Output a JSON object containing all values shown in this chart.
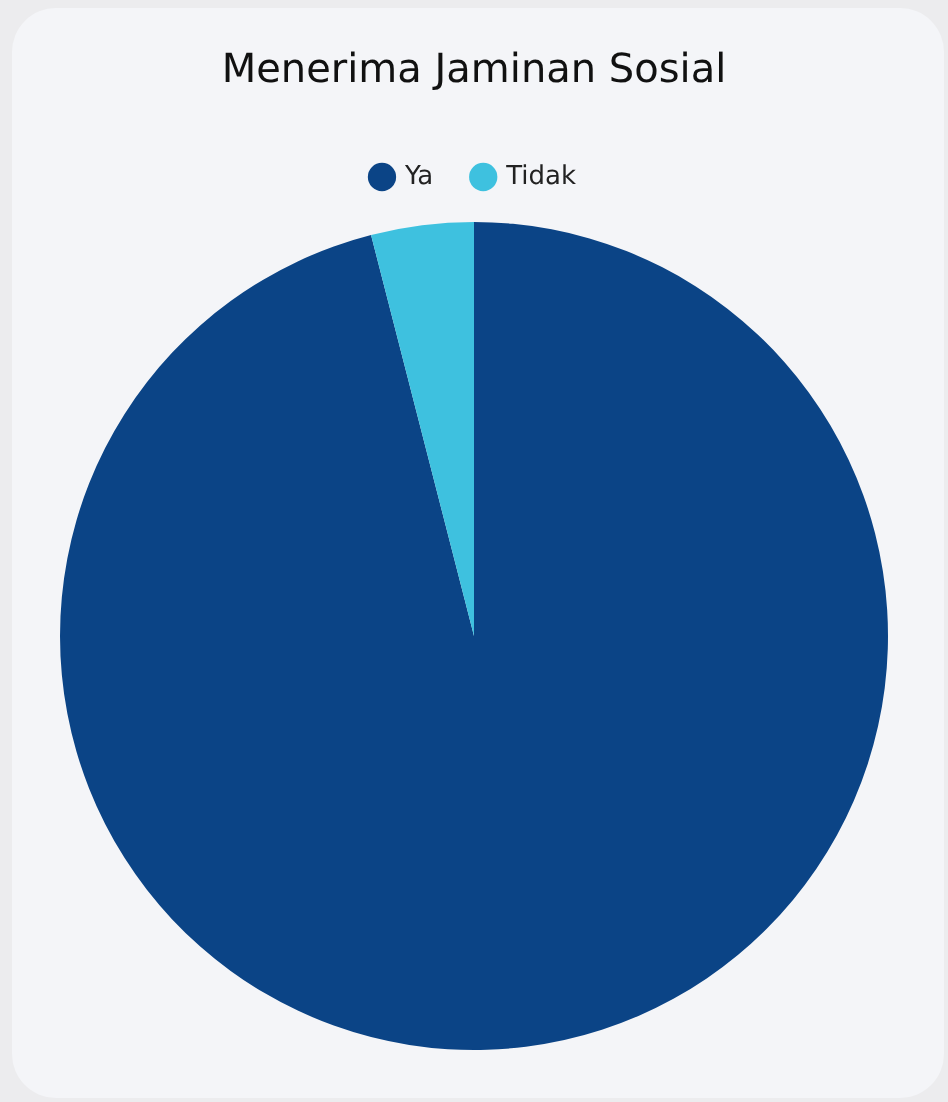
{
  "chart_data": {
    "type": "pie",
    "title": "Menerima Jaminan Sosial",
    "categories": [
      "Ya",
      "Tidak"
    ],
    "values": [
      96,
      4
    ],
    "colors": [
      "#0b4486",
      "#3ec1df"
    ],
    "legend": "top"
  }
}
